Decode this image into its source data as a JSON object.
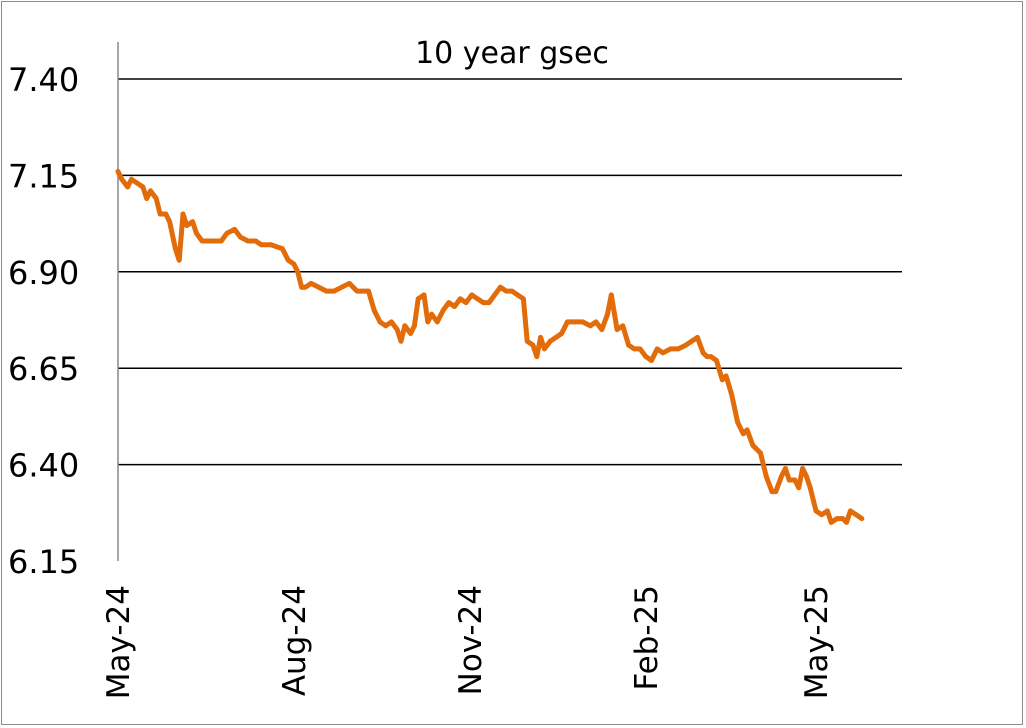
{
  "chart_data": {
    "type": "line",
    "title": "10 year gsec",
    "xlabel": "",
    "ylabel": "",
    "ylim": [
      6.15,
      7.4
    ],
    "yticks": [
      "7.40",
      "7.15",
      "6.90",
      "6.65",
      "6.40",
      "6.15"
    ],
    "grid": "horizontal",
    "legend": "none",
    "x_tick_labels": [
      "May-24",
      "Aug-24",
      "Nov-24",
      "Feb-25",
      "May-25"
    ],
    "x_tick_dates": [
      "2024-05-01",
      "2024-08-01",
      "2024-11-01",
      "2025-02-01",
      "2025-05-01"
    ],
    "xlim": [
      "2024-05-01",
      "2025-06-15"
    ],
    "series": [
      {
        "color": "#e36c0a",
        "points": [
          [
            "2024-05-01",
            7.16
          ],
          [
            "2024-05-03",
            7.14
          ],
          [
            "2024-05-06",
            7.12
          ],
          [
            "2024-05-08",
            7.14
          ],
          [
            "2024-05-11",
            7.13
          ],
          [
            "2024-05-14",
            7.12
          ],
          [
            "2024-05-16",
            7.09
          ],
          [
            "2024-05-18",
            7.11
          ],
          [
            "2024-05-21",
            7.09
          ],
          [
            "2024-05-23",
            7.05
          ],
          [
            "2024-05-26",
            7.05
          ],
          [
            "2024-05-28",
            7.03
          ],
          [
            "2024-05-31",
            6.96
          ],
          [
            "2024-06-02",
            6.93
          ],
          [
            "2024-06-04",
            7.05
          ],
          [
            "2024-06-06",
            7.02
          ],
          [
            "2024-06-09",
            7.03
          ],
          [
            "2024-06-11",
            7.0
          ],
          [
            "2024-06-14",
            6.98
          ],
          [
            "2024-06-19",
            6.98
          ],
          [
            "2024-06-24",
            6.98
          ],
          [
            "2024-06-27",
            7.0
          ],
          [
            "2024-07-01",
            7.01
          ],
          [
            "2024-07-04",
            6.99
          ],
          [
            "2024-07-08",
            6.98
          ],
          [
            "2024-07-12",
            6.98
          ],
          [
            "2024-07-15",
            6.97
          ],
          [
            "2024-07-20",
            6.97
          ],
          [
            "2024-07-26",
            6.96
          ],
          [
            "2024-07-29",
            6.93
          ],
          [
            "2024-08-01",
            6.92
          ],
          [
            "2024-08-03",
            6.9
          ],
          [
            "2024-08-05",
            6.86
          ],
          [
            "2024-08-07",
            6.86
          ],
          [
            "2024-08-10",
            6.87
          ],
          [
            "2024-08-14",
            6.86
          ],
          [
            "2024-08-18",
            6.85
          ],
          [
            "2024-08-22",
            6.85
          ],
          [
            "2024-08-26",
            6.86
          ],
          [
            "2024-08-30",
            6.87
          ],
          [
            "2024-09-03",
            6.85
          ],
          [
            "2024-09-09",
            6.85
          ],
          [
            "2024-09-12",
            6.8
          ],
          [
            "2024-09-15",
            6.77
          ],
          [
            "2024-09-18",
            6.76
          ],
          [
            "2024-09-21",
            6.77
          ],
          [
            "2024-09-24",
            6.75
          ],
          [
            "2024-09-26",
            6.72
          ],
          [
            "2024-09-28",
            6.76
          ],
          [
            "2024-10-01",
            6.74
          ],
          [
            "2024-10-03",
            6.76
          ],
          [
            "2024-10-05",
            6.83
          ],
          [
            "2024-10-08",
            6.84
          ],
          [
            "2024-10-10",
            6.77
          ],
          [
            "2024-10-12",
            6.79
          ],
          [
            "2024-10-15",
            6.77
          ],
          [
            "2024-10-18",
            6.8
          ],
          [
            "2024-10-21",
            6.82
          ],
          [
            "2024-10-24",
            6.81
          ],
          [
            "2024-10-27",
            6.83
          ],
          [
            "2024-10-30",
            6.82
          ],
          [
            "2024-11-02",
            6.84
          ],
          [
            "2024-11-05",
            6.83
          ],
          [
            "2024-11-08",
            6.82
          ],
          [
            "2024-11-11",
            6.82
          ],
          [
            "2024-11-14",
            6.84
          ],
          [
            "2024-11-17",
            6.86
          ],
          [
            "2024-11-20",
            6.85
          ],
          [
            "2024-11-23",
            6.85
          ],
          [
            "2024-11-26",
            6.84
          ],
          [
            "2024-11-29",
            6.83
          ],
          [
            "2024-12-01",
            6.72
          ],
          [
            "2024-12-04",
            6.71
          ],
          [
            "2024-12-06",
            6.68
          ],
          [
            "2024-12-08",
            6.73
          ],
          [
            "2024-12-10",
            6.7
          ],
          [
            "2024-12-13",
            6.72
          ],
          [
            "2024-12-16",
            6.73
          ],
          [
            "2024-12-19",
            6.74
          ],
          [
            "2024-12-22",
            6.77
          ],
          [
            "2024-12-26",
            6.77
          ],
          [
            "2024-12-30",
            6.77
          ],
          [
            "2025-01-03",
            6.76
          ],
          [
            "2025-01-06",
            6.77
          ],
          [
            "2025-01-09",
            6.75
          ],
          [
            "2025-01-12",
            6.79
          ],
          [
            "2025-01-14",
            6.84
          ],
          [
            "2025-01-17",
            6.75
          ],
          [
            "2025-01-20",
            6.76
          ],
          [
            "2025-01-23",
            6.71
          ],
          [
            "2025-01-26",
            6.7
          ],
          [
            "2025-01-29",
            6.7
          ],
          [
            "2025-02-01",
            6.68
          ],
          [
            "2025-02-04",
            6.67
          ],
          [
            "2025-02-07",
            6.7
          ],
          [
            "2025-02-10",
            6.69
          ],
          [
            "2025-02-14",
            6.7
          ],
          [
            "2025-02-18",
            6.7
          ],
          [
            "2025-02-22",
            6.71
          ],
          [
            "2025-02-25",
            6.72
          ],
          [
            "2025-02-28",
            6.73
          ],
          [
            "2025-03-03",
            6.69
          ],
          [
            "2025-03-05",
            6.68
          ],
          [
            "2025-03-07",
            6.68
          ],
          [
            "2025-03-10",
            6.67
          ],
          [
            "2025-03-13",
            6.62
          ],
          [
            "2025-03-15",
            6.63
          ],
          [
            "2025-03-18",
            6.58
          ],
          [
            "2025-03-21",
            6.51
          ],
          [
            "2025-03-24",
            6.48
          ],
          [
            "2025-03-26",
            6.49
          ],
          [
            "2025-03-29",
            6.45
          ],
          [
            "2025-04-02",
            6.43
          ],
          [
            "2025-04-05",
            6.37
          ],
          [
            "2025-04-08",
            6.33
          ],
          [
            "2025-04-10",
            6.33
          ],
          [
            "2025-04-13",
            6.37
          ],
          [
            "2025-04-15",
            6.39
          ],
          [
            "2025-04-17",
            6.36
          ],
          [
            "2025-04-20",
            6.36
          ],
          [
            "2025-04-22",
            6.34
          ],
          [
            "2025-04-24",
            6.39
          ],
          [
            "2025-04-26",
            6.37
          ],
          [
            "2025-04-28",
            6.34
          ],
          [
            "2025-05-01",
            6.28
          ],
          [
            "2025-05-04",
            6.27
          ],
          [
            "2025-05-07",
            6.28
          ],
          [
            "2025-05-09",
            6.25
          ],
          [
            "2025-05-12",
            6.26
          ],
          [
            "2025-05-15",
            6.26
          ],
          [
            "2025-05-17",
            6.25
          ],
          [
            "2025-05-19",
            6.28
          ],
          [
            "2025-05-22",
            6.27
          ],
          [
            "2025-05-25",
            6.26
          ]
        ]
      }
    ]
  }
}
